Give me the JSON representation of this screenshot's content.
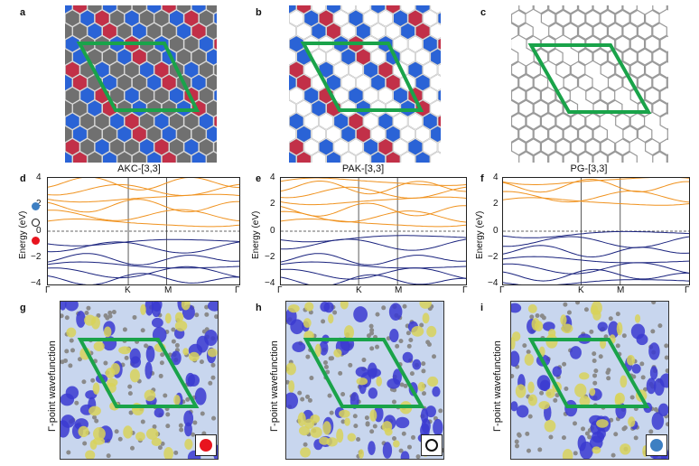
{
  "panels": {
    "a": {
      "letter": "a",
      "title": "AKC-[3,3]"
    },
    "b": {
      "letter": "b",
      "title": "PAK-[3,3]"
    },
    "c": {
      "letter": "c",
      "title": "PG-[3,3]"
    },
    "d": {
      "letter": "d"
    },
    "e": {
      "letter": "e"
    },
    "f": {
      "letter": "f"
    },
    "g": {
      "letter": "g"
    },
    "h": {
      "letter": "h"
    },
    "i": {
      "letter": "i"
    }
  },
  "energy_axis": {
    "label": "Energy (eV)",
    "ticks": [
      "4",
      "2",
      "0",
      "−2",
      "−4"
    ]
  },
  "kpath": [
    "Γ",
    "K",
    "M",
    "Γ"
  ],
  "wavefunction_label": "Γ-point wavefunction",
  "marker_colors": {
    "red": "#e8141e",
    "open": "#ffffff",
    "blue": "#3d7fc2"
  },
  "colors": {
    "conduction": "#f0921e",
    "valence": "#1a237e",
    "unit_cell": "#1aa34a",
    "hex_blue": "#2a63d6",
    "hex_red": "#c23048",
    "hex_grey": "#707070"
  },
  "chart_data": [
    {
      "type": "line",
      "panel": "d",
      "material": "AKC-[3,3]",
      "ylabel": "Energy (eV)",
      "ylim": [
        -4,
        4
      ],
      "xticks": [
        "Γ",
        "K",
        "M",
        "Γ"
      ],
      "markers": [
        {
          "energy": 1.9,
          "color": "blue"
        },
        {
          "energy": 0.65,
          "color": "open"
        },
        {
          "energy": -0.8,
          "color": "red"
        }
      ]
    },
    {
      "type": "line",
      "panel": "e",
      "material": "PAK-[3,3]",
      "ylabel": "Energy (eV)",
      "ylim": [
        -4,
        4
      ],
      "xticks": [
        "Γ",
        "K",
        "M",
        "Γ"
      ]
    },
    {
      "type": "line",
      "panel": "f",
      "material": "PG-[3,3]",
      "ylabel": "Energy (eV)",
      "ylim": [
        -4,
        4
      ],
      "xticks": [
        "Γ",
        "K",
        "M",
        "Γ"
      ]
    }
  ]
}
